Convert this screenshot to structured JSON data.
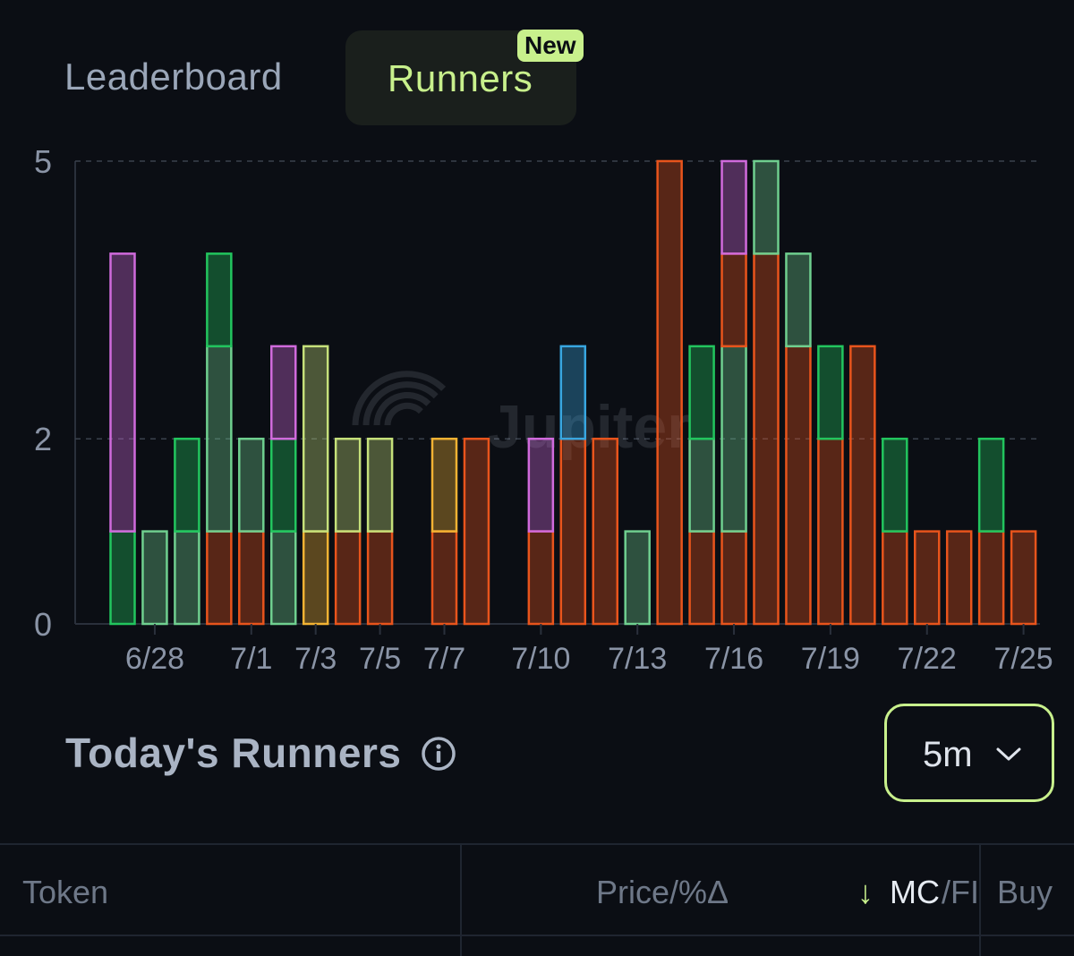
{
  "tabs": {
    "leaderboard": "Leaderboard",
    "runners": "Runners",
    "runners_badge": "New"
  },
  "watermark": "Jupiter",
  "colors": {
    "accent": "#c8f08c",
    "orange": "#e8541c",
    "bright_green": "#22c55e",
    "pale_green": "#6fcf8f",
    "purple": "#d06adc",
    "lime": "#c5e07a",
    "yellow": "#f2b233",
    "blue": "#38a6e0"
  },
  "chart_data": {
    "type": "bar",
    "stacked": true,
    "y_ticks": [
      "0",
      "2",
      "5"
    ],
    "ylim": [
      0,
      5
    ],
    "x_tick_labels": [
      "6/28",
      "7/1",
      "7/3",
      "7/5",
      "7/7",
      "7/10",
      "7/13",
      "7/16",
      "7/19",
      "7/22",
      "7/25"
    ],
    "grid": "horizontal dashed",
    "bars": [
      {
        "date": "6/27",
        "segments": [
          [
            "bright_green",
            1
          ],
          [
            "purple",
            3
          ]
        ]
      },
      {
        "date": "6/28",
        "segments": [
          [
            "pale_green",
            1
          ]
        ]
      },
      {
        "date": "6/29",
        "segments": [
          [
            "pale_green",
            1
          ],
          [
            "bright_green",
            1
          ]
        ]
      },
      {
        "date": "6/30",
        "segments": [
          [
            "orange",
            1
          ],
          [
            "pale_green",
            2
          ],
          [
            "bright_green",
            1
          ]
        ]
      },
      {
        "date": "7/1",
        "segments": [
          [
            "orange",
            1
          ],
          [
            "pale_green",
            1
          ]
        ]
      },
      {
        "date": "7/2",
        "segments": [
          [
            "pale_green",
            1
          ],
          [
            "bright_green",
            1
          ],
          [
            "purple",
            1
          ]
        ]
      },
      {
        "date": "7/3",
        "segments": [
          [
            "yellow",
            1
          ],
          [
            "lime",
            2
          ]
        ]
      },
      {
        "date": "7/4",
        "segments": [
          [
            "orange",
            1
          ],
          [
            "lime",
            1
          ]
        ]
      },
      {
        "date": "7/5",
        "segments": [
          [
            "orange",
            1
          ],
          [
            "lime",
            1
          ]
        ]
      },
      {
        "date": "7/7",
        "segments": [
          [
            "orange",
            1
          ],
          [
            "yellow",
            1
          ]
        ]
      },
      {
        "date": "7/8",
        "segments": [
          [
            "orange",
            2
          ]
        ]
      },
      {
        "date": "7/10",
        "segments": [
          [
            "orange",
            1
          ],
          [
            "purple",
            1
          ]
        ]
      },
      {
        "date": "7/11",
        "segments": [
          [
            "orange",
            2
          ],
          [
            "blue",
            1
          ]
        ]
      },
      {
        "date": "7/12",
        "segments": [
          [
            "orange",
            2
          ]
        ]
      },
      {
        "date": "7/13",
        "segments": [
          [
            "pale_green",
            1
          ]
        ]
      },
      {
        "date": "7/14",
        "segments": [
          [
            "orange",
            5
          ]
        ]
      },
      {
        "date": "7/15",
        "segments": [
          [
            "orange",
            1
          ],
          [
            "pale_green",
            1
          ],
          [
            "bright_green",
            1
          ]
        ]
      },
      {
        "date": "7/16",
        "segments": [
          [
            "orange",
            1
          ],
          [
            "pale_green",
            2
          ],
          [
            "orange",
            1
          ],
          [
            "purple",
            1
          ]
        ]
      },
      {
        "date": "7/17",
        "segments": [
          [
            "orange",
            4
          ],
          [
            "pale_green",
            1
          ]
        ]
      },
      {
        "date": "7/18",
        "segments": [
          [
            "orange",
            3
          ],
          [
            "pale_green",
            1
          ]
        ]
      },
      {
        "date": "7/19",
        "segments": [
          [
            "orange",
            2
          ],
          [
            "bright_green",
            1
          ]
        ]
      },
      {
        "date": "7/20",
        "segments": [
          [
            "orange",
            3
          ]
        ]
      },
      {
        "date": "7/21",
        "segments": [
          [
            "orange",
            1
          ],
          [
            "bright_green",
            1
          ]
        ]
      },
      {
        "date": "7/22",
        "segments": [
          [
            "orange",
            1
          ]
        ]
      },
      {
        "date": "7/23",
        "segments": [
          [
            "orange",
            1
          ]
        ]
      },
      {
        "date": "7/24",
        "segments": [
          [
            "orange",
            1
          ],
          [
            "bright_green",
            1
          ]
        ]
      },
      {
        "date": "7/25",
        "segments": [
          [
            "orange",
            1
          ]
        ]
      }
    ]
  },
  "section": {
    "title": "Today's Runners",
    "timeframe": "5m"
  },
  "table": {
    "headers": {
      "token": "Token",
      "price": "Price/%Δ",
      "sort_arrow": "↓",
      "mc": "MC",
      "fdv": "/FI",
      "buy": "Buy"
    }
  }
}
